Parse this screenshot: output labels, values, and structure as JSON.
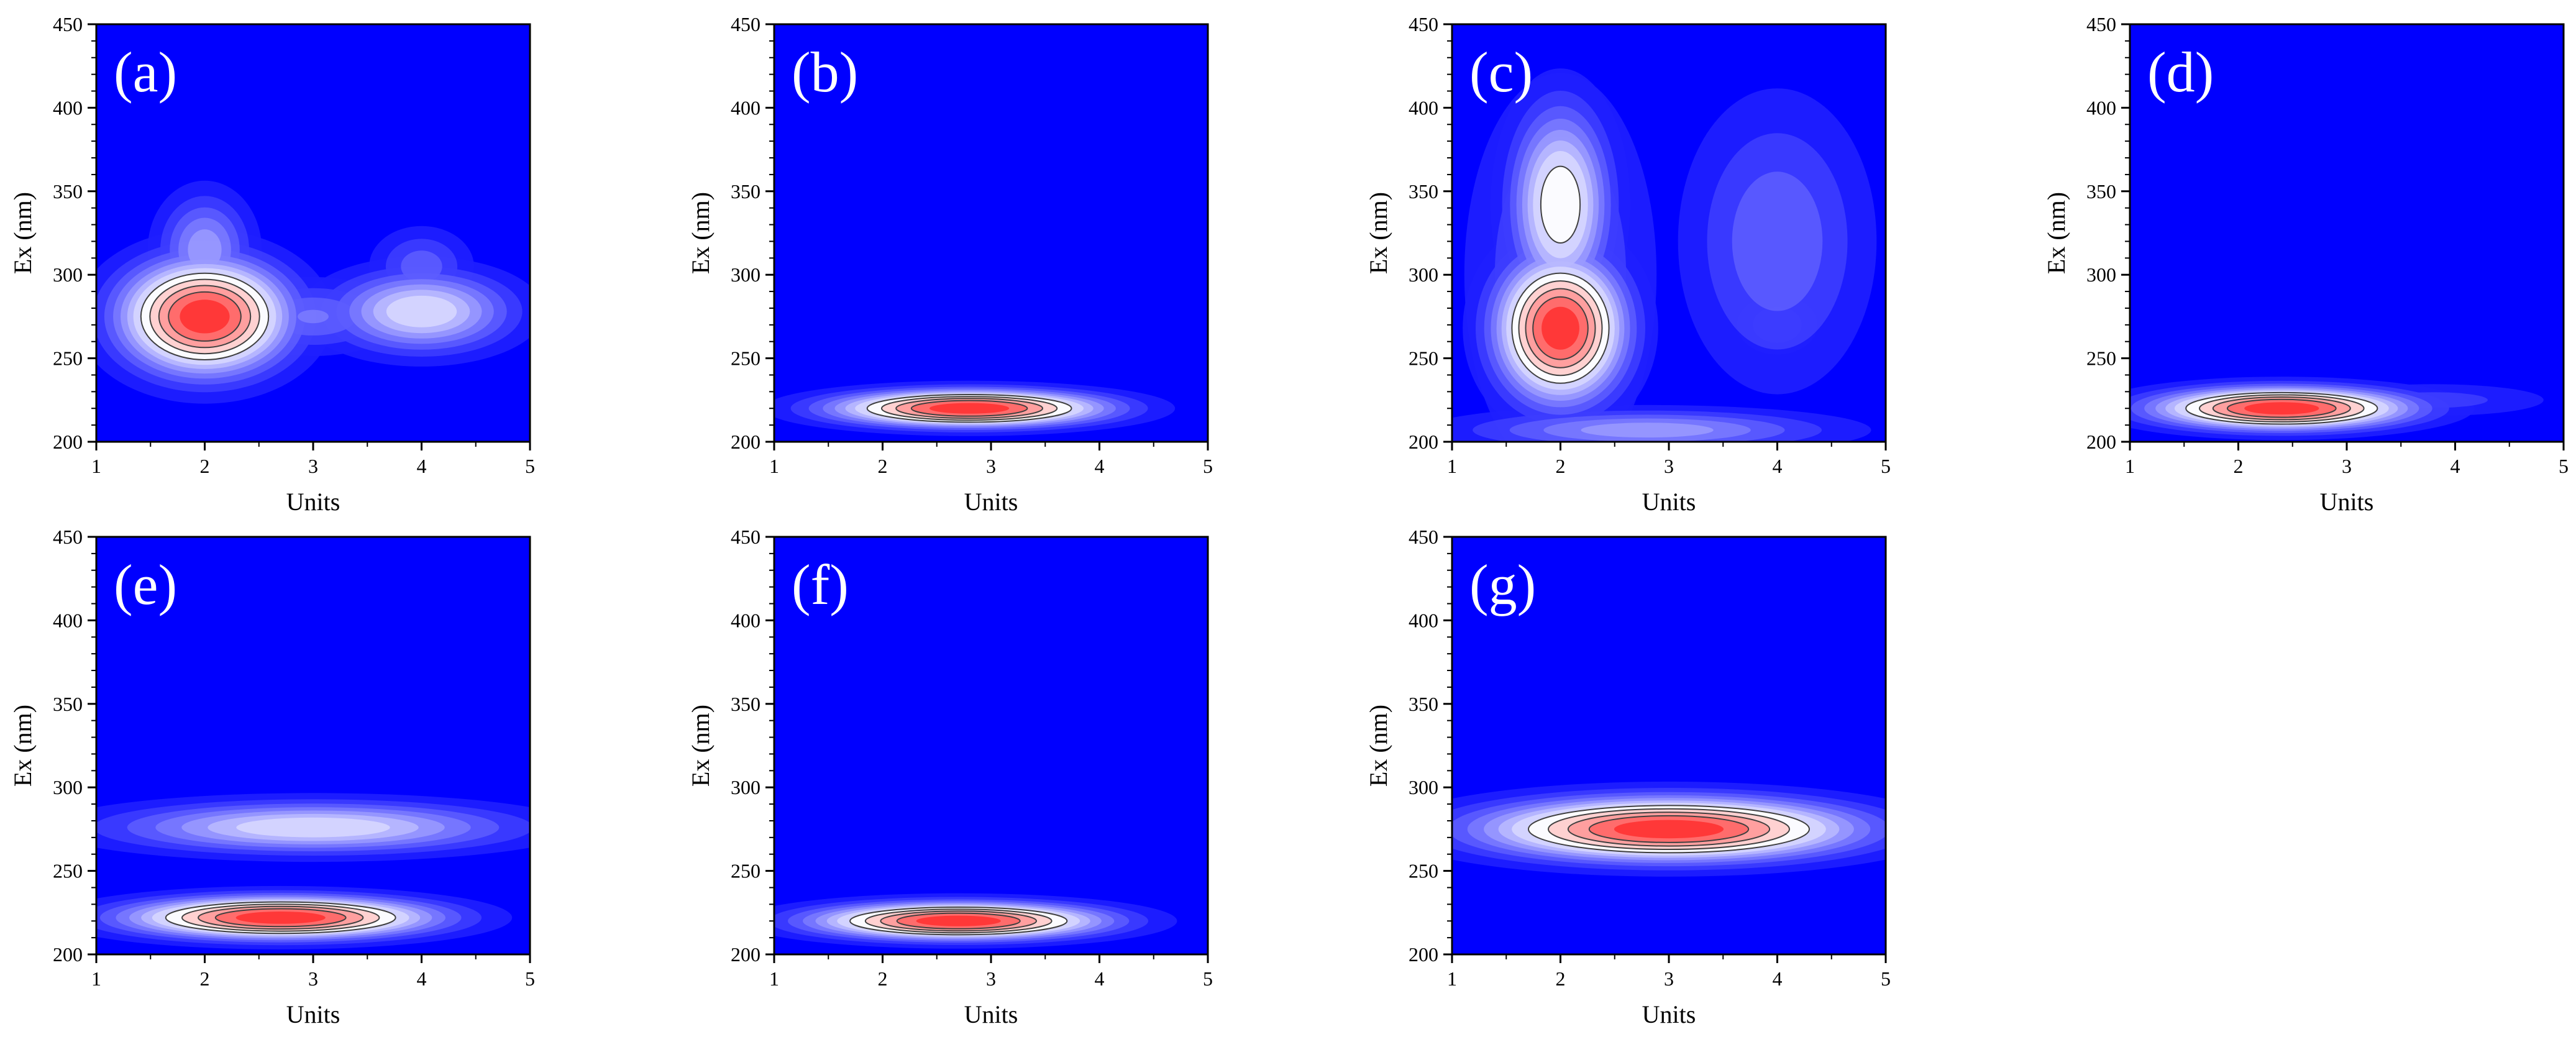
{
  "chart_data": [
    {
      "type": "heatmap",
      "panel_label": "(a)",
      "xlabel": "Units",
      "ylabel": "Ex (nm)",
      "xlim": [
        1,
        5
      ],
      "ylim": [
        200,
        450
      ],
      "xticks": [
        "1",
        "2",
        "3",
        "4",
        "5"
      ],
      "yticks": [
        "200",
        "250",
        "300",
        "350",
        "400",
        "450"
      ],
      "peaks": [
        {
          "x": 2.0,
          "y": 275,
          "sx": 0.5,
          "sy": 22,
          "amp": 1.0
        },
        {
          "x": 2.0,
          "y": 315,
          "sx": 0.28,
          "sy": 22,
          "amp": 0.35
        },
        {
          "x": 4.0,
          "y": 278,
          "sx": 0.55,
          "sy": 16,
          "amp": 0.5
        },
        {
          "x": 4.0,
          "y": 305,
          "sx": 0.3,
          "sy": 15,
          "amp": 0.22
        },
        {
          "x": 3.0,
          "y": 275,
          "sx": 0.5,
          "sy": 14,
          "amp": 0.25
        }
      ]
    },
    {
      "type": "heatmap",
      "panel_label": "(b)",
      "xlabel": "Units",
      "ylabel": "Ex (nm)",
      "xlim": [
        1,
        5
      ],
      "ylim": [
        200,
        450
      ],
      "xticks": [
        "1",
        "2",
        "3",
        "4",
        "5"
      ],
      "yticks": [
        "200",
        "250",
        "300",
        "350",
        "400",
        "450"
      ],
      "peaks": [
        {
          "x": 2.8,
          "y": 220,
          "sx": 0.8,
          "sy": 7,
          "amp": 1.0
        }
      ]
    },
    {
      "type": "heatmap",
      "panel_label": "(c)",
      "xlabel": "Units",
      "ylabel": "Ex (nm)",
      "xlim": [
        1,
        5
      ],
      "ylim": [
        200,
        450
      ],
      "xticks": [
        "1",
        "2",
        "3",
        "4",
        "5"
      ],
      "yticks": [
        "200",
        "250",
        "300",
        "350",
        "400",
        "450"
      ],
      "peaks": [
        {
          "x": 2.0,
          "y": 268,
          "sx": 0.38,
          "sy": 28,
          "amp": 1.0
        },
        {
          "x": 2.0,
          "y": 342,
          "sx": 0.3,
          "sy": 38,
          "amp": 0.6
        },
        {
          "x": 2.0,
          "y": 300,
          "sx": 0.55,
          "sy": 75,
          "amp": 0.22
        },
        {
          "x": 4.0,
          "y": 320,
          "sx": 0.55,
          "sy": 55,
          "amp": 0.24
        },
        {
          "x": 4.0,
          "y": 270,
          "sx": 0.25,
          "sy": 12,
          "amp": 0.18
        },
        {
          "x": 2.8,
          "y": 207,
          "sx": 1.1,
          "sy": 8,
          "amp": 0.35
        }
      ]
    },
    {
      "type": "heatmap",
      "panel_label": "(d)",
      "xlabel": "Units",
      "ylabel": "Ex (nm)",
      "xlim": [
        1,
        5
      ],
      "ylim": [
        200,
        450
      ],
      "xticks": [
        "1",
        "2",
        "3",
        "4",
        "5"
      ],
      "yticks": [
        "200",
        "250",
        "300",
        "350",
        "400",
        "450"
      ],
      "peaks": [
        {
          "x": 2.4,
          "y": 220,
          "sx": 0.75,
          "sy": 8,
          "amp": 1.0
        },
        {
          "x": 3.8,
          "y": 225,
          "sx": 0.75,
          "sy": 7,
          "amp": 0.15
        }
      ]
    },
    {
      "type": "heatmap",
      "panel_label": "(e)",
      "xlabel": "Units",
      "ylabel": "Ex (nm)",
      "xlim": [
        1,
        5
      ],
      "ylim": [
        200,
        450
      ],
      "xticks": [
        "1",
        "2",
        "3",
        "4",
        "5"
      ],
      "yticks": [
        "200",
        "250",
        "300",
        "350",
        "400",
        "450"
      ],
      "peaks": [
        {
          "x": 2.7,
          "y": 222,
          "sx": 0.9,
          "sy": 8,
          "amp": 1.0
        },
        {
          "x": 3.0,
          "y": 276,
          "sx": 1.2,
          "sy": 10,
          "amp": 0.5
        }
      ]
    },
    {
      "type": "heatmap",
      "panel_label": "(f)",
      "xlabel": "Units",
      "ylabel": "Ex (nm)",
      "xlim": [
        1,
        5
      ],
      "ylim": [
        200,
        450
      ],
      "xticks": [
        "1",
        "2",
        "3",
        "4",
        "5"
      ],
      "yticks": [
        "200",
        "250",
        "300",
        "350",
        "400",
        "450"
      ],
      "peaks": [
        {
          "x": 2.7,
          "y": 220,
          "sx": 0.85,
          "sy": 7,
          "amp": 1.0
        }
      ]
    },
    {
      "type": "heatmap",
      "panel_label": "(g)",
      "xlabel": "Units",
      "ylabel": "Ex (nm)",
      "xlim": [
        1,
        5
      ],
      "ylim": [
        200,
        450
      ],
      "xticks": [
        "1",
        "2",
        "3",
        "4",
        "5"
      ],
      "yticks": [
        "200",
        "250",
        "300",
        "350",
        "400",
        "450"
      ],
      "peaks": [
        {
          "x": 3.0,
          "y": 275,
          "sx": 1.1,
          "sy": 12,
          "amp": 1.0
        }
      ]
    }
  ],
  "colors": {
    "background": "#0000ff",
    "mid": "#ffffff",
    "high": "#ff0000",
    "contour": "#404040",
    "panel_label": "#ffffff"
  }
}
